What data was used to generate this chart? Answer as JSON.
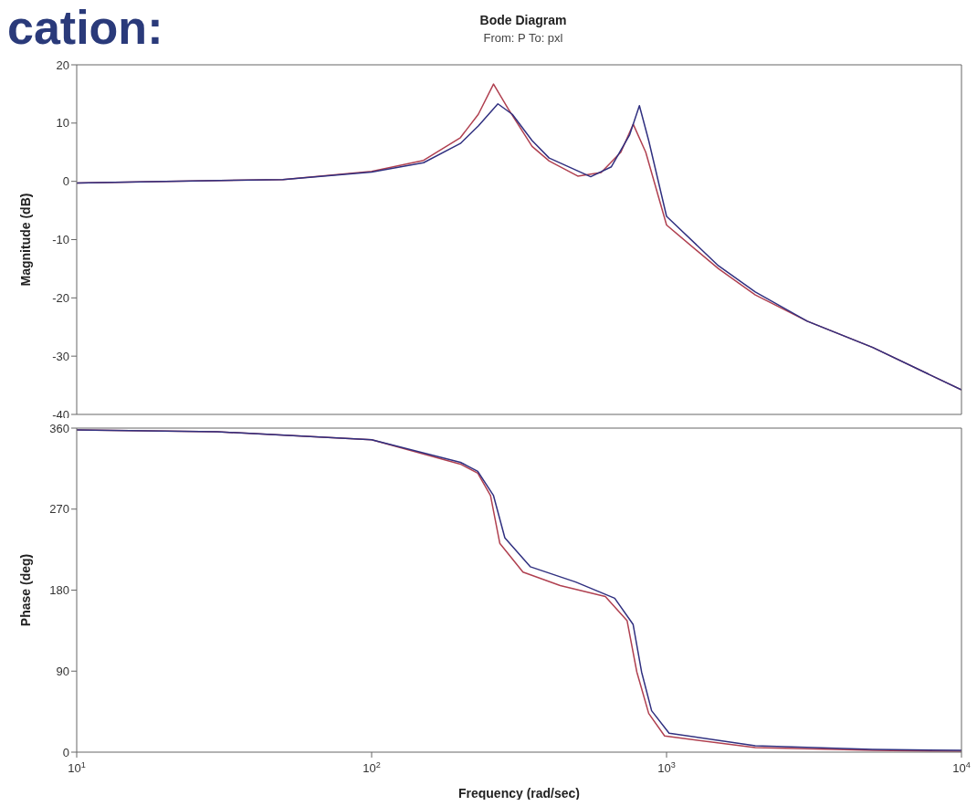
{
  "chart_data": [
    {
      "type": "line",
      "title": "Bode Diagram",
      "subtitle": "From: P  To: pxl",
      "ylabel": "Magnitude (dB)",
      "annotations": [
        "cation:"
      ],
      "log": "x",
      "xlim": [
        10,
        10000
      ],
      "xticks": [
        {
          "value": 10,
          "label": null
        },
        {
          "value": 100,
          "label": null
        },
        {
          "value": 1000,
          "label": null
        },
        {
          "value": 10000,
          "label": null
        }
      ],
      "ylim": [
        -40,
        20
      ],
      "yticks": [
        -40,
        -30,
        -20,
        -10,
        0,
        10,
        20
      ],
      "tick_labels": "y",
      "grid": false,
      "legend": false,
      "marker": "none",
      "line_style": "solid",
      "series": [
        {
          "color": "#b04050",
          "x": [
            10,
            20,
            50,
            100,
            150,
            200,
            230,
            259,
            290,
            350,
            400,
            500,
            600,
            700,
            771,
            850,
            1000,
            1500,
            2000,
            3000,
            5000,
            10000
          ],
          "values": [
            -0.3,
            0,
            0.3,
            1.7,
            3.6,
            7.5,
            11.5,
            16.7,
            12.5,
            6,
            3.5,
            0.9,
            1.5,
            5,
            9.8,
            5,
            -7.5,
            -15,
            -19.5,
            -24,
            -28.5,
            -35.8
          ]
        },
        {
          "color": "#303080",
          "x": [
            10,
            20,
            50,
            100,
            150,
            200,
            230,
            268,
            300,
            350,
            400,
            553,
            650,
            750,
            809,
            870,
            1000,
            1500,
            2000,
            3000,
            5000,
            10000
          ],
          "values": [
            -0.3,
            0,
            0.3,
            1.6,
            3.2,
            6.5,
            9.5,
            13.3,
            11.5,
            7,
            4,
            0.8,
            2.5,
            8,
            13,
            7,
            -6,
            -14.5,
            -19,
            -24,
            -28.5,
            -35.8
          ]
        }
      ]
    },
    {
      "type": "line",
      "xlabel": "Frequency  (rad/sec)",
      "ylabel": "Phase (deg)",
      "log": "x",
      "xlim": [
        10,
        10000
      ],
      "xticks": [
        {
          "value": 10,
          "label": "10$^{1}$"
        },
        {
          "value": 100,
          "label": "10$^{2}$"
        },
        {
          "value": 1000,
          "label": "10$^{3}$"
        },
        {
          "value": 10000,
          "label": "10$^{4}$"
        }
      ],
      "ylim": [
        0,
        360
      ],
      "yticks": [
        0,
        90,
        180,
        270,
        360
      ],
      "grid": false,
      "legend": false,
      "marker": "none",
      "line_style": "solid",
      "series": [
        {
          "color": "#b04050",
          "x": [
            10,
            30,
            100,
            200,
            229,
            253,
            272,
            326,
            436,
            620,
            735,
            793,
            870,
            985,
            2000,
            5000,
            10000
          ],
          "values": [
            358,
            356,
            347,
            320,
            310,
            285,
            232,
            200,
            185,
            173,
            146,
            89,
            43,
            18,
            5,
            2,
            1
          ]
        },
        {
          "color": "#303080",
          "x": [
            10,
            30,
            100,
            200,
            229,
            259,
            283,
            345,
            492,
            667,
            770,
            823,
            890,
            1020,
            2000,
            5000,
            10000
          ],
          "values": [
            358,
            356,
            347,
            322,
            312,
            285,
            238,
            206,
            189,
            171,
            142,
            89,
            46,
            21,
            7,
            3,
            2
          ]
        }
      ]
    }
  ]
}
